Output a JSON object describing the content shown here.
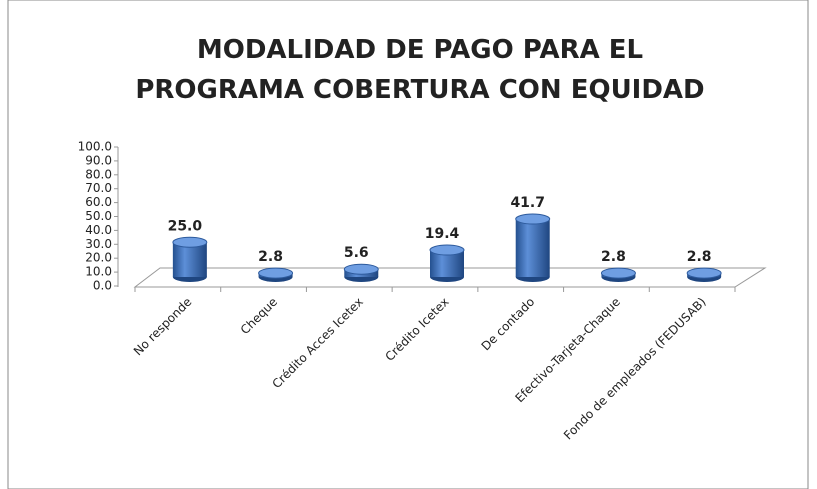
{
  "chart_data": {
    "type": "bar3d",
    "title": "MODALIDAD DE PAGO PARA EL PROGRAMA COBERTURA CON EQUIDAD",
    "categories": [
      "No responde",
      "Cheque",
      "Crédito Acces Icetex",
      "Crédito Icetex",
      "De contado",
      "Efectivo-Tarjeta-Chaque",
      "Fondo de empleados (FEDUSAB)"
    ],
    "values": [
      25,
      2.8,
      5.6,
      19.4,
      41.7,
      2.8,
      2.8
    ],
    "value_labels": [
      "25.0",
      "2.8",
      "5.6",
      "19.4",
      "41.7",
      "2.8",
      "2.8"
    ],
    "color": "#3f72c0",
    "ylim": [
      0,
      100
    ],
    "yticks": [
      {
        "value": 0,
        "label": "0.0"
      },
      {
        "value": 10,
        "label": "10.0"
      },
      {
        "value": 20,
        "label": "20.0"
      },
      {
        "value": 30,
        "label": "30.0"
      },
      {
        "value": 40,
        "label": "40.0"
      },
      {
        "value": 50,
        "label": "50.0"
      },
      {
        "value": 60,
        "label": "60.0"
      },
      {
        "value": 70,
        "label": "70.0"
      },
      {
        "value": 80,
        "label": "80.0"
      },
      {
        "value": 90,
        "label": "90.0"
      },
      {
        "value": 100,
        "label": "100.0"
      }
    ]
  }
}
